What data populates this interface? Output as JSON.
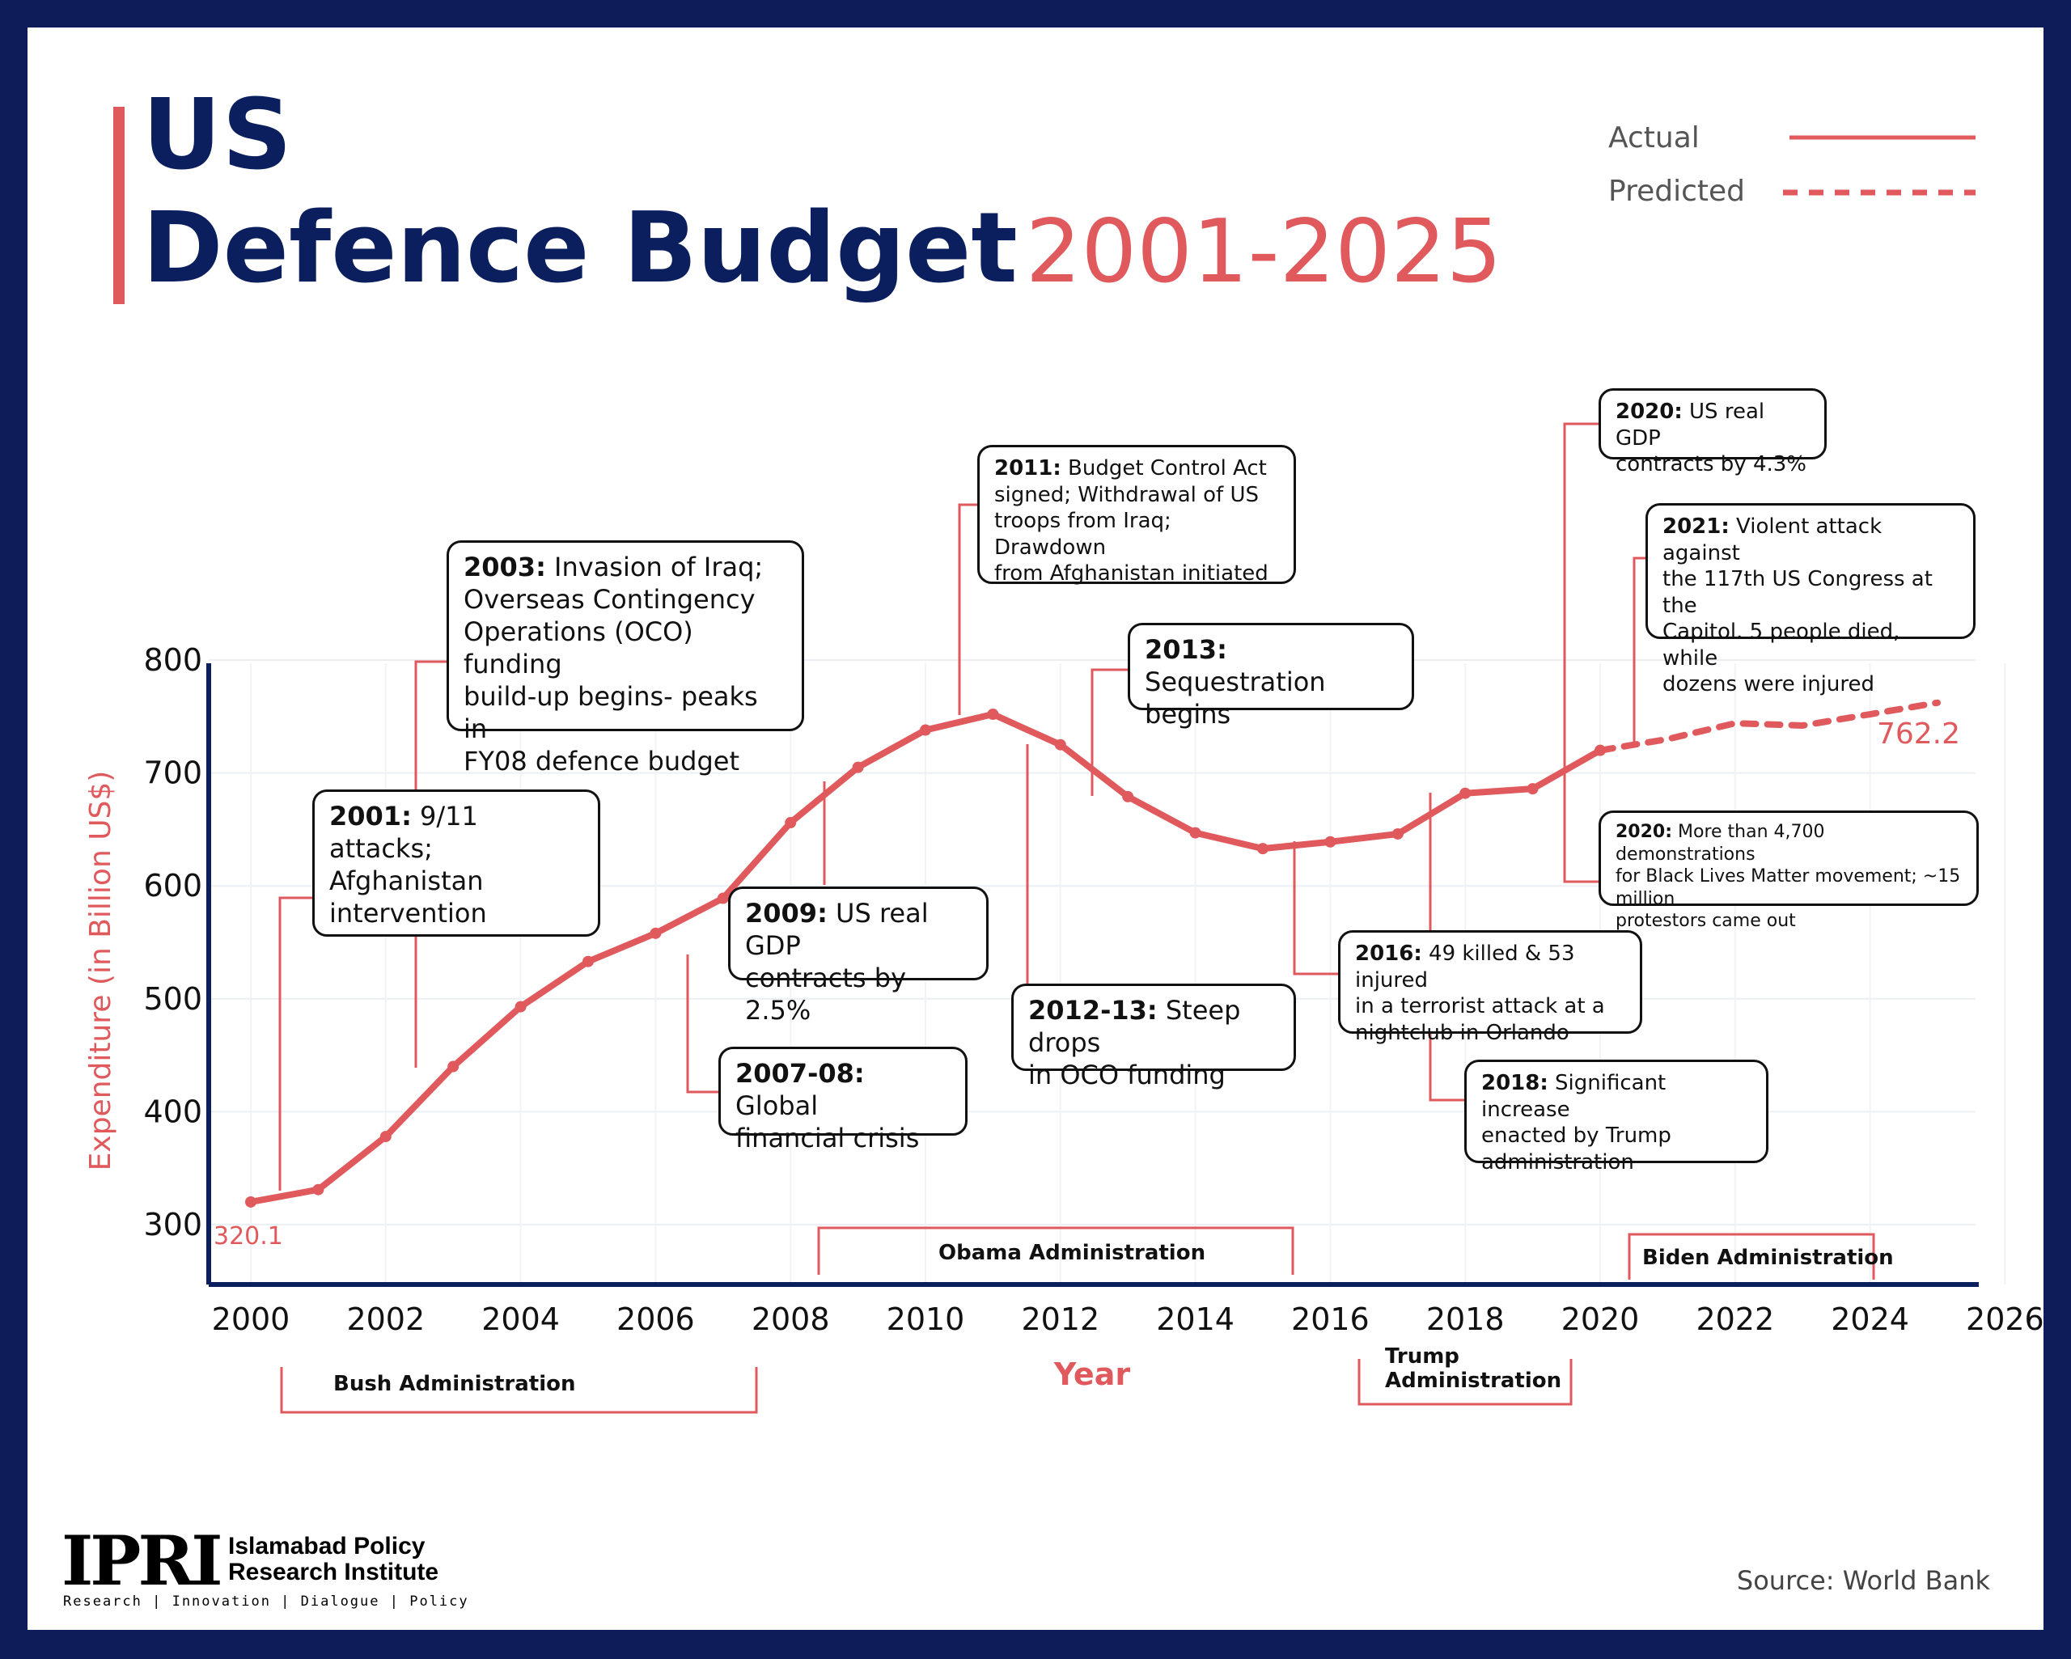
{
  "title": {
    "line1": "US",
    "line2": "Defence Budget",
    "years": "2001-2025"
  },
  "legend": {
    "actual": "Actual",
    "predicted": "Predicted"
  },
  "colors": {
    "line": "#e05a5d",
    "navy": "#0e1d5a",
    "axis": "#0b1f5e"
  },
  "chart_data": {
    "type": "line",
    "xlabel": "Year",
    "ylabel": "Expenditure (in Billion US$)",
    "xlim": [
      1999.5,
      2026.5
    ],
    "ylim": [
      250,
      800
    ],
    "xticks": [
      "2000",
      "2002",
      "2004",
      "2006",
      "2008",
      "2010",
      "2012",
      "2014",
      "2016",
      "2018",
      "2020",
      "2022",
      "2024",
      "2026"
    ],
    "yticks": [
      "300",
      "400",
      "500",
      "600",
      "700",
      "800"
    ],
    "grid": true,
    "legend_position": "top-right",
    "series": [
      {
        "name": "Actual",
        "style": "solid",
        "x": [
          2000,
          2001,
          2002,
          2003,
          2004,
          2005,
          2006,
          2007,
          2008,
          2009,
          2010,
          2011,
          2012,
          2013,
          2014,
          2015,
          2016,
          2017,
          2018,
          2019,
          2020
        ],
        "y": [
          320.1,
          331,
          378,
          440,
          493,
          533,
          558,
          589,
          656,
          705,
          738,
          752,
          725,
          679,
          647,
          633,
          639,
          646,
          682,
          686,
          720
        ]
      },
      {
        "name": "Predicted",
        "style": "dashed",
        "x": [
          2020,
          2021,
          2022,
          2023,
          2024,
          2025
        ],
        "y": [
          720,
          730,
          744,
          742,
          752,
          762.2
        ]
      }
    ],
    "point_labels": [
      {
        "text": "320.1",
        "x": 2000,
        "y": 320.1
      },
      {
        "text": "762.2",
        "x": 2025,
        "y": 762.2
      }
    ],
    "administrations": [
      {
        "label": "Bush Administration",
        "start": 2001,
        "end": 2008,
        "side": "below"
      },
      {
        "label": "Obama Administration",
        "start": 2009,
        "end": 2016,
        "side": "above"
      },
      {
        "label_line1": "Trump",
        "label_line2": "Administration",
        "start": 2017,
        "end": 2020,
        "side": "below"
      },
      {
        "label": "Biden Administration",
        "start": 2021,
        "end": 2024.6,
        "side": "above"
      }
    ]
  },
  "annotations": [
    {
      "id": "a2001",
      "year_bold": "2001:",
      "text": "9/11 attacks; Afghanistan intervention",
      "lines": [
        "9/11 attacks;",
        "Afghanistan",
        "intervention"
      ]
    },
    {
      "id": "a2003",
      "year_bold": "2003:",
      "lines": [
        "Invasion of Iraq;",
        "Overseas Contingency",
        "Operations (OCO) funding",
        "build-up begins- peaks in",
        "FY08 defence budget"
      ]
    },
    {
      "id": "a2007",
      "year_bold": "2007-08:",
      "lines": [
        "Global",
        "financial crisis"
      ]
    },
    {
      "id": "a2009",
      "year_bold": "2009:",
      "lines": [
        "US real GDP",
        "contracts by 2.5%"
      ]
    },
    {
      "id": "a2011",
      "year_bold": "2011:",
      "lines": [
        "Budget Control Act",
        "signed; Withdrawal of US",
        "troops from Iraq; Drawdown",
        "from Afghanistan initiated"
      ]
    },
    {
      "id": "a2012",
      "year_bold": "2012-13:",
      "lines": [
        "Steep drops",
        "in OCO funding"
      ]
    },
    {
      "id": "a2013",
      "year_bold": "2013:",
      "lines": [
        "Sequestration",
        "begins"
      ]
    },
    {
      "id": "a2016",
      "year_bold": "2016:",
      "lines": [
        "49 killed & 53 injured",
        "in a terrorist attack at a",
        "nightclub in Orlando"
      ]
    },
    {
      "id": "a2018",
      "year_bold": "2018:",
      "lines": [
        "Significant increase",
        "enacted by Trump",
        "administration"
      ]
    },
    {
      "id": "a2020gdp",
      "year_bold": "2020:",
      "lines": [
        "US real GDP",
        "contracts by 4.3%"
      ]
    },
    {
      "id": "a2021",
      "year_bold": "2021:",
      "lines": [
        "Violent attack against",
        "the 117th US Congress at the",
        "Capitol. 5 people died, while",
        "dozens were injured"
      ]
    },
    {
      "id": "a2020blm",
      "year_bold": "2020:",
      "lines": [
        "More than 4,700 demonstrations",
        "for Black Lives Matter movement; ~15 million",
        "protestors came out"
      ]
    }
  ],
  "footer": {
    "logo_mark": "IPRI",
    "logo_name_1": "Islamabad Policy",
    "logo_name_2": "Research Institute",
    "logo_tagline": "Research | Innovation | Dialogue | Policy",
    "source": "Source: World Bank"
  }
}
